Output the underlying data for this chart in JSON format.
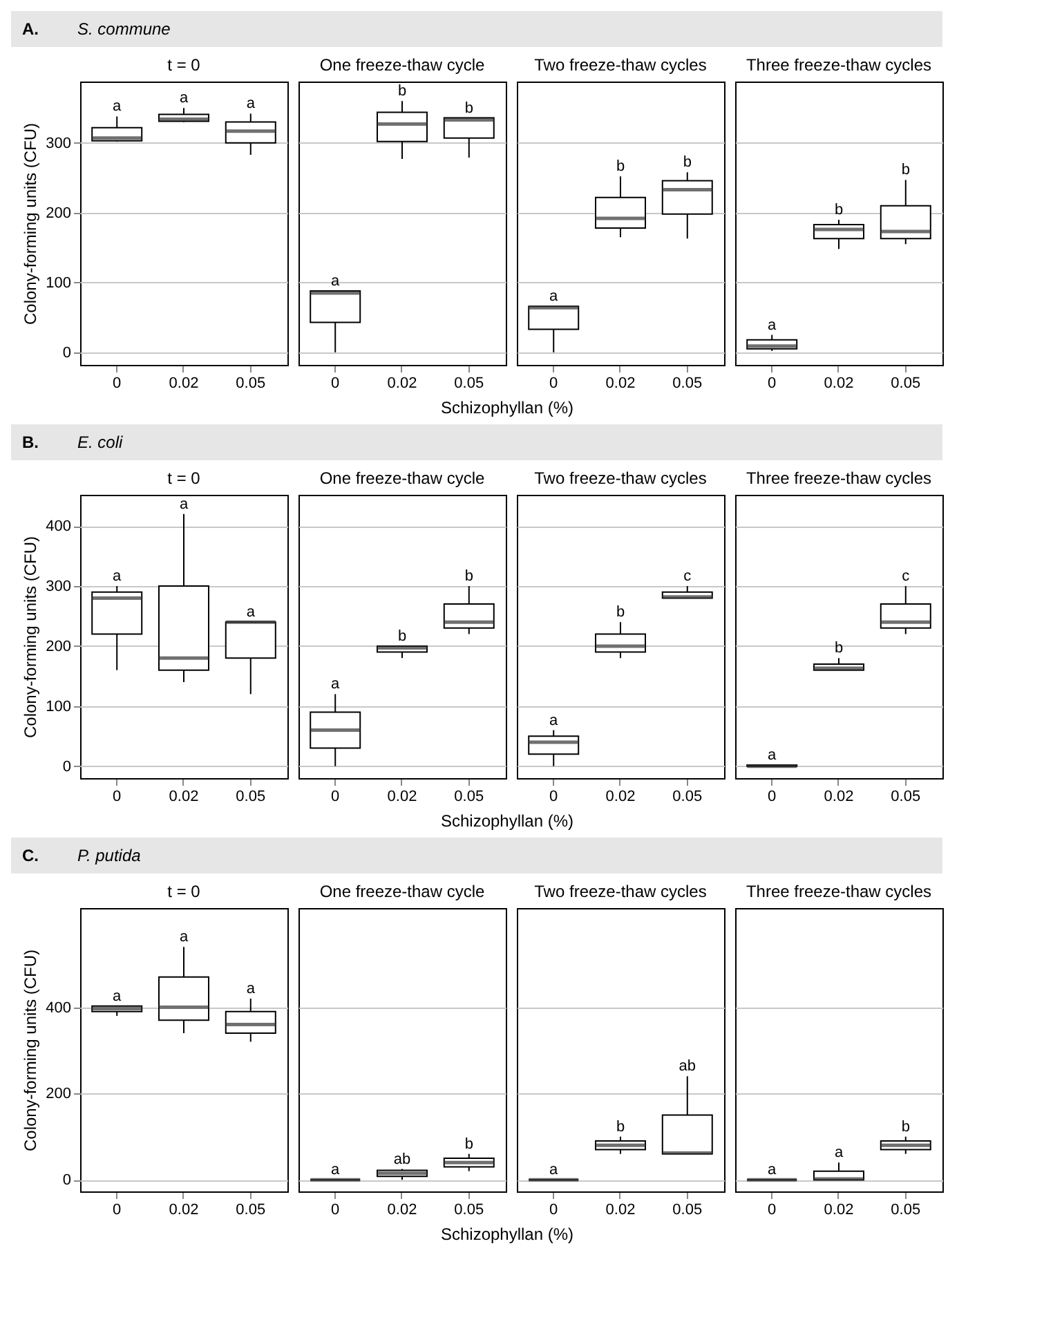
{
  "chart_data": [
    {
      "type": "other",
      "title": "A.",
      "subtitle": "S. commune"
    },
    {
      "type": "box",
      "title": "t = 0",
      "ylabel": "Colony-forming units (CFU)",
      "categories": [
        "0",
        "0.02",
        "0.05"
      ],
      "ylim": [
        -18,
        388
      ],
      "yticks": [
        0,
        100,
        200,
        300
      ],
      "grid": "y",
      "boxes": [
        {
          "low": 302,
          "q1": 303,
          "median": 307,
          "q3": 322,
          "high": 338
        },
        {
          "low": 330,
          "q1": 331,
          "median": 334,
          "q3": 341,
          "high": 350
        },
        {
          "low": 283,
          "q1": 300,
          "median": 317,
          "q3": 330,
          "high": 342
        }
      ],
      "annotations": [
        "a",
        "a",
        "a"
      ]
    },
    {
      "type": "box",
      "title": "One freeze-thaw cycle",
      "categories": [
        "0",
        "0.02",
        "0.05"
      ],
      "ylim": [
        -18,
        388
      ],
      "yticks": [
        0,
        100,
        200,
        300
      ],
      "grid": "y",
      "tick_labels": "x",
      "boxes": [
        {
          "low": 0,
          "q1": 43,
          "median": 85,
          "q3": 88,
          "high": 88
        },
        {
          "low": 277,
          "q1": 302,
          "median": 327,
          "q3": 344,
          "high": 360
        },
        {
          "low": 279,
          "q1": 307,
          "median": 333,
          "q3": 336,
          "high": 336
        }
      ],
      "annotations": [
        "a",
        "b",
        "b"
      ]
    },
    {
      "type": "box",
      "title": "Two freeze-thaw cycles",
      "categories": [
        "0",
        "0.02",
        "0.05"
      ],
      "ylim": [
        -18,
        388
      ],
      "yticks": [
        0,
        100,
        200,
        300
      ],
      "grid": "y",
      "tick_labels": "x",
      "boxes": [
        {
          "low": 0,
          "q1": 33,
          "median": 64,
          "q3": 66,
          "high": 66
        },
        {
          "low": 165,
          "q1": 178,
          "median": 192,
          "q3": 222,
          "high": 252
        },
        {
          "low": 163,
          "q1": 198,
          "median": 233,
          "q3": 246,
          "high": 258
        }
      ],
      "annotations": [
        "a",
        "b",
        "b"
      ]
    },
    {
      "type": "box",
      "title": "Three freeze-thaw cycles",
      "categories": [
        "0",
        "0.02",
        "0.05"
      ],
      "ylim": [
        -18,
        388
      ],
      "yticks": [
        0,
        100,
        200,
        300
      ],
      "grid": "y",
      "tick_labels": "x",
      "boxes": [
        {
          "low": 2,
          "q1": 5,
          "median": 9,
          "q3": 18,
          "high": 25
        },
        {
          "low": 148,
          "q1": 163,
          "median": 176,
          "q3": 183,
          "high": 190
        },
        {
          "low": 155,
          "q1": 163,
          "median": 173,
          "q3": 210,
          "high": 247
        }
      ],
      "annotations": [
        "a",
        "b",
        "b"
      ]
    },
    {
      "type": "other",
      "xlabel": "Schizophyllan (%)"
    },
    {
      "type": "other",
      "title": "B.",
      "subtitle": "E. coli"
    },
    {
      "type": "box",
      "title": "t = 0",
      "ylabel": "Colony-forming units (CFU)",
      "categories": [
        "0",
        "0.02",
        "0.05"
      ],
      "ylim": [
        -20,
        452
      ],
      "yticks": [
        0,
        100,
        200,
        300,
        400
      ],
      "grid": "y",
      "boxes": [
        {
          "low": 160,
          "q1": 220,
          "median": 280,
          "q3": 290,
          "high": 300
        },
        {
          "low": 140,
          "q1": 160,
          "median": 180,
          "q3": 300,
          "high": 420
        },
        {
          "low": 120,
          "q1": 180,
          "median": 240,
          "q3": 240,
          "high": 240
        }
      ],
      "annotations": [
        "a",
        "a",
        "a"
      ]
    },
    {
      "type": "box",
      "title": "One freeze-thaw cycle",
      "categories": [
        "0",
        "0.02",
        "0.05"
      ],
      "ylim": [
        -20,
        452
      ],
      "yticks": [
        0,
        100,
        200,
        300,
        400
      ],
      "grid": "y",
      "tick_labels": "x",
      "boxes": [
        {
          "low": 0,
          "q1": 30,
          "median": 60,
          "q3": 90,
          "high": 120
        },
        {
          "low": 180,
          "q1": 190,
          "median": 197,
          "q3": 200,
          "high": 200
        },
        {
          "low": 220,
          "q1": 230,
          "median": 240,
          "q3": 270,
          "high": 300
        }
      ],
      "annotations": [
        "a",
        "b",
        "b"
      ]
    },
    {
      "type": "box",
      "title": "Two freeze-thaw cycles",
      "categories": [
        "0",
        "0.02",
        "0.05"
      ],
      "ylim": [
        -20,
        452
      ],
      "yticks": [
        0,
        100,
        200,
        300,
        400
      ],
      "grid": "y",
      "tick_labels": "x",
      "boxes": [
        {
          "low": 0,
          "q1": 20,
          "median": 40,
          "q3": 50,
          "high": 60
        },
        {
          "low": 180,
          "q1": 190,
          "median": 200,
          "q3": 220,
          "high": 240
        },
        {
          "low": 280,
          "q1": 280,
          "median": 282,
          "q3": 290,
          "high": 300
        }
      ],
      "annotations": [
        "a",
        "b",
        "c"
      ]
    },
    {
      "type": "box",
      "title": "Three freeze-thaw cycles",
      "categories": [
        "0",
        "0.02",
        "0.05"
      ],
      "ylim": [
        -20,
        452
      ],
      "yticks": [
        0,
        100,
        200,
        300,
        400
      ],
      "grid": "y",
      "tick_labels": "x",
      "boxes": [
        {
          "low": 0,
          "q1": 0,
          "median": 0,
          "q3": 2,
          "high": 2
        },
        {
          "low": 160,
          "q1": 160,
          "median": 163,
          "q3": 170,
          "high": 180
        },
        {
          "low": 220,
          "q1": 230,
          "median": 240,
          "q3": 270,
          "high": 300
        }
      ],
      "annotations": [
        "a",
        "b",
        "c"
      ]
    },
    {
      "type": "other",
      "xlabel": "Schizophyllan (%)"
    },
    {
      "type": "other",
      "title": "C.",
      "subtitle": "P. putida"
    },
    {
      "type": "box",
      "title": "t = 0",
      "ylabel": "Colony-forming units (CFU)",
      "categories": [
        "0",
        "0.02",
        "0.05"
      ],
      "ylim": [
        -27,
        630
      ],
      "yticks": [
        0,
        200,
        400
      ],
      "grid": "y",
      "boxes": [
        {
          "low": 380,
          "q1": 390,
          "median": 397,
          "q3": 403,
          "high": 403
        },
        {
          "low": 340,
          "q1": 370,
          "median": 400,
          "q3": 470,
          "high": 540
        },
        {
          "low": 320,
          "q1": 340,
          "median": 360,
          "q3": 390,
          "high": 420
        }
      ],
      "annotations": [
        "a",
        "a",
        "a"
      ]
    },
    {
      "type": "box",
      "title": "One freeze-thaw cycle",
      "categories": [
        "0",
        "0.02",
        "0.05"
      ],
      "ylim": [
        -27,
        630
      ],
      "yticks": [
        0,
        200,
        400
      ],
      "grid": "y",
      "tick_labels": "x",
      "boxes": [
        {
          "low": 0,
          "q1": 0,
          "median": 0,
          "q3": 0,
          "high": 0
        },
        {
          "low": 0,
          "q1": 8,
          "median": 15,
          "q3": 22,
          "high": 25
        },
        {
          "low": 20,
          "q1": 30,
          "median": 40,
          "q3": 50,
          "high": 60
        }
      ],
      "annotations": [
        "a",
        "ab",
        "b"
      ]
    },
    {
      "type": "box",
      "title": "Two freeze-thaw cycles",
      "categories": [
        "0",
        "0.02",
        "0.05"
      ],
      "ylim": [
        -27,
        630
      ],
      "yticks": [
        0,
        200,
        400
      ],
      "grid": "y",
      "tick_labels": "x",
      "boxes": [
        {
          "low": 0,
          "q1": 0,
          "median": 0,
          "q3": 0,
          "high": 0
        },
        {
          "low": 60,
          "q1": 70,
          "median": 80,
          "q3": 90,
          "high": 100
        },
        {
          "low": 60,
          "q1": 60,
          "median": 62,
          "q3": 150,
          "high": 240
        }
      ],
      "annotations": [
        "a",
        "b",
        "ab"
      ]
    },
    {
      "type": "box",
      "title": "Three freeze-thaw cycles",
      "categories": [
        "0",
        "0.02",
        "0.05"
      ],
      "ylim": [
        -27,
        630
      ],
      "yticks": [
        0,
        200,
        400
      ],
      "grid": "y",
      "tick_labels": "x",
      "boxes": [
        {
          "low": 0,
          "q1": 0,
          "median": 0,
          "q3": 0,
          "high": 0
        },
        {
          "low": 0,
          "q1": 0,
          "median": 2,
          "q3": 20,
          "high": 40
        },
        {
          "low": 60,
          "q1": 70,
          "median": 80,
          "q3": 90,
          "high": 100
        }
      ],
      "annotations": [
        "a",
        "a",
        "b"
      ]
    },
    {
      "type": "other",
      "xlabel": "Schizophyllan (%)"
    }
  ]
}
